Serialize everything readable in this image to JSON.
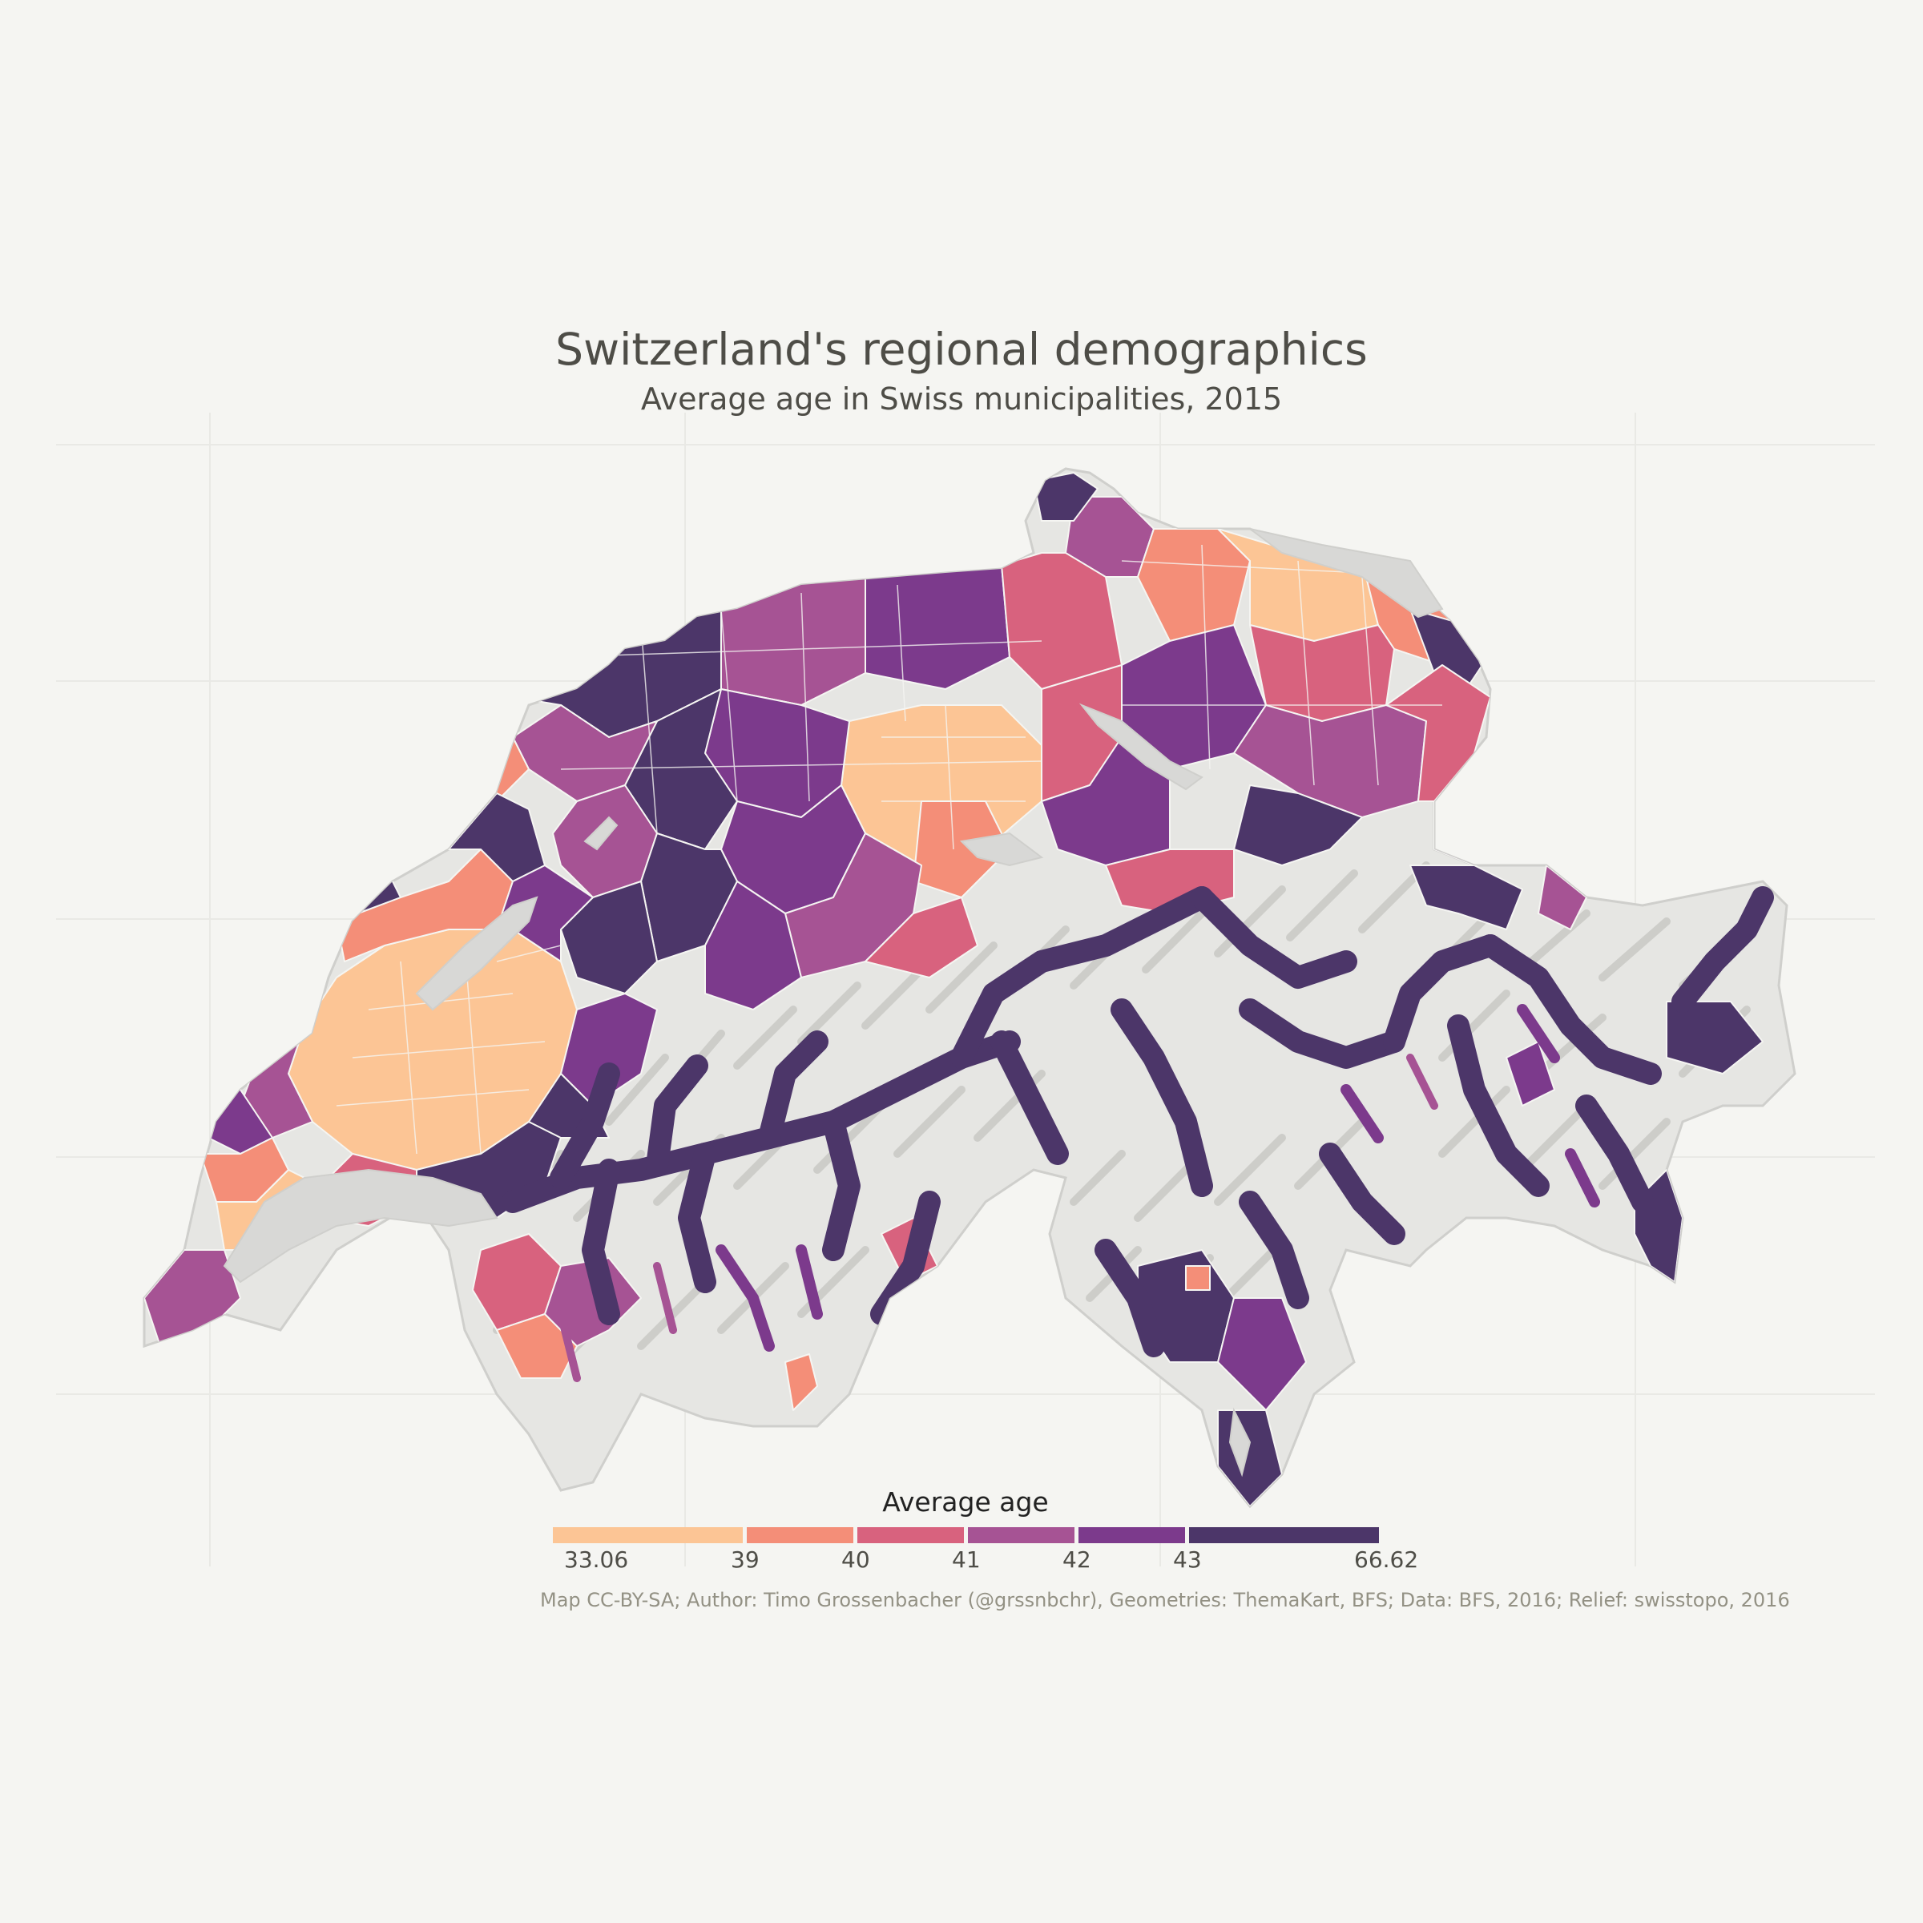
{
  "title": "Switzerland's regional demographics",
  "subtitle": "Average age in Swiss municipalities, 2015",
  "legend": {
    "title": "Average age",
    "classes": [
      {
        "from": "33.06",
        "to": "39",
        "color": "#fcc595"
      },
      {
        "from": "39",
        "to": "40",
        "color": "#f48e78"
      },
      {
        "from": "40",
        "to": "41",
        "color": "#d8627e"
      },
      {
        "from": "41",
        "to": "42",
        "color": "#a65394"
      },
      {
        "from": "42",
        "to": "43",
        "color": "#7c3a8c"
      },
      {
        "from": "43",
        "to": "66.62",
        "color": "#4c3669"
      }
    ],
    "tick_labels": [
      "33.06",
      "39",
      "40",
      "41",
      "42",
      "43",
      "66.62"
    ]
  },
  "caption": "Map CC-BY-SA; Author: Timo Grossenbacher (@grssnbchr), Geometries: ThemaKart, BFS; Data: BFS, 2016; Relief: swisstopo, 2016",
  "colors": {
    "background": "#f5f5f2",
    "relief": "#e8e8e6",
    "lakes": "#d8d8d6",
    "text": "#4e4d47",
    "caption": "#939184"
  }
}
